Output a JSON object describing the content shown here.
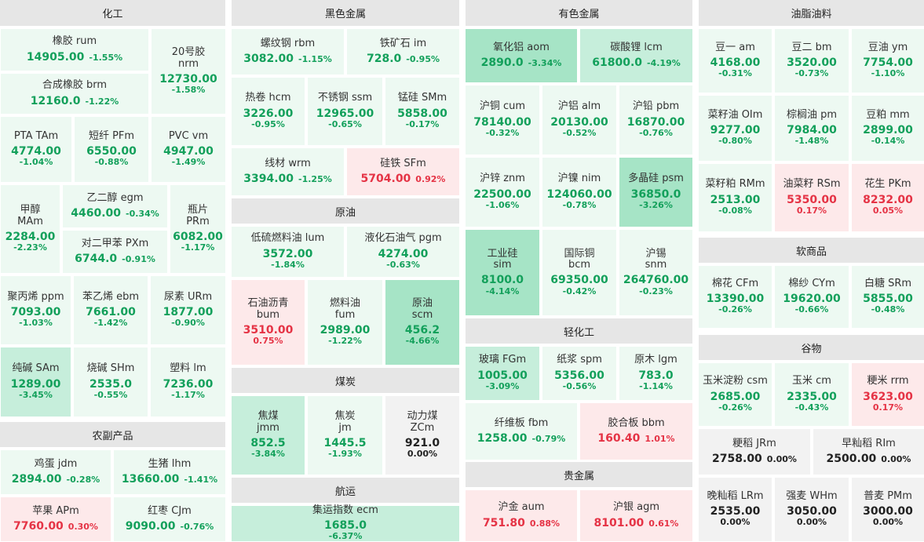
{
  "palette": {
    "light_green": "#edf9f2",
    "mid_green": "#c6eedb",
    "dark_green": "#a6e4c6",
    "light_red": "#fde9ea",
    "gray": "#f2f2f2",
    "up": "#e53345",
    "down": "#13a05b"
  },
  "sections": [
    {
      "id": "huagong",
      "title": "化工"
    },
    {
      "id": "nongfu",
      "title": "农副产品"
    },
    {
      "id": "heise",
      "title": "黑色金属"
    },
    {
      "id": "yuanyou",
      "title": "原油"
    },
    {
      "id": "meitan",
      "title": "煤炭"
    },
    {
      "id": "hangyun",
      "title": "航运"
    },
    {
      "id": "youse",
      "title": "有色金属"
    },
    {
      "id": "qinghua",
      "title": "轻化工"
    },
    {
      "id": "gui",
      "title": "贵金属"
    },
    {
      "id": "youzhi",
      "title": "油脂油料"
    },
    {
      "id": "ruan",
      "title": "软商品"
    },
    {
      "id": "guwu",
      "title": "谷物"
    }
  ],
  "cells": [
    {
      "name": "橡胶  rum",
      "price": "14905.00",
      "pct": "-1.55%",
      "dir": "down",
      "layout": "row"
    },
    {
      "name": "20号胶\nnrm",
      "price": "12730.00",
      "pct": "-1.58%",
      "dir": "down",
      "layout": "col"
    },
    {
      "name": "合成橡胶  brm",
      "price": "12160.0",
      "pct": "-1.22%",
      "dir": "down",
      "layout": "row"
    },
    {
      "name": "PTA  TAm",
      "price": "4774.00",
      "pct": "-1.04%",
      "dir": "down",
      "layout": "col"
    },
    {
      "name": "短纤  PFm",
      "price": "6550.00",
      "pct": "-0.88%",
      "dir": "down",
      "layout": "col"
    },
    {
      "name": "PVC  vm",
      "price": "4947.00",
      "pct": "-1.49%",
      "dir": "down",
      "layout": "col"
    },
    {
      "name": "甲醇\nMAm",
      "price": "2284.00",
      "pct": "-2.23%",
      "dir": "down",
      "layout": "col"
    },
    {
      "name": "乙二醇  egm",
      "price": "4460.00",
      "pct": "-0.34%",
      "dir": "down",
      "layout": "row"
    },
    {
      "name": "瓶片\nPRm",
      "price": "6082.00",
      "pct": "-1.17%",
      "dir": "down",
      "layout": "col"
    },
    {
      "name": "对二甲苯  PXm",
      "price": "6744.0",
      "pct": "-0.91%",
      "dir": "down",
      "layout": "row"
    },
    {
      "name": "聚丙烯  ppm",
      "price": "7093.00",
      "pct": "-1.03%",
      "dir": "down",
      "layout": "col"
    },
    {
      "name": "苯乙烯  ebm",
      "price": "7661.00",
      "pct": "-1.42%",
      "dir": "down",
      "layout": "col"
    },
    {
      "name": "尿素  URm",
      "price": "1877.00",
      "pct": "-0.90%",
      "dir": "down",
      "layout": "col"
    },
    {
      "name": "纯碱  SAm",
      "price": "1289.00",
      "pct": "-3.45%",
      "dir": "down",
      "layout": "col"
    },
    {
      "name": "烧碱  SHm",
      "price": "2535.0",
      "pct": "-0.55%",
      "dir": "down",
      "layout": "col"
    },
    {
      "name": "塑料  lm",
      "price": "7236.00",
      "pct": "-1.17%",
      "dir": "down",
      "layout": "col"
    },
    {
      "name": "鸡蛋  jdm",
      "price": "2894.00",
      "pct": "-0.28%",
      "dir": "down",
      "layout": "row"
    },
    {
      "name": "生猪  lhm",
      "price": "13660.00",
      "pct": "-1.41%",
      "dir": "down",
      "layout": "row"
    },
    {
      "name": "苹果  APm",
      "price": "7760.00",
      "pct": "0.30%",
      "dir": "up",
      "layout": "row"
    },
    {
      "name": "红枣  CJm",
      "price": "9090.00",
      "pct": "-0.76%",
      "dir": "down",
      "layout": "row"
    },
    {
      "name": "螺纹钢  rbm",
      "price": "3082.00",
      "pct": "-1.15%",
      "dir": "down",
      "layout": "row"
    },
    {
      "name": "铁矿石  im",
      "price": "728.0",
      "pct": "-0.95%",
      "dir": "down",
      "layout": "row"
    },
    {
      "name": "热卷  hcm",
      "price": "3226.00",
      "pct": "-0.95%",
      "dir": "down",
      "layout": "col"
    },
    {
      "name": "不锈钢  ssm",
      "price": "12965.00",
      "pct": "-0.65%",
      "dir": "down",
      "layout": "col"
    },
    {
      "name": "锰硅  SMm",
      "price": "5858.00",
      "pct": "-0.17%",
      "dir": "down",
      "layout": "col"
    },
    {
      "name": "线材  wrm",
      "price": "3394.00",
      "pct": "-1.25%",
      "dir": "down",
      "layout": "row"
    },
    {
      "name": "硅铁  SFm",
      "price": "5704.00",
      "pct": "0.92%",
      "dir": "up",
      "layout": "row"
    },
    {
      "name": "低硫燃料油  lum",
      "price": "3572.00",
      "pct": "-1.84%",
      "dir": "down",
      "layout": "col"
    },
    {
      "name": "液化石油气  pgm",
      "price": "4274.00",
      "pct": "-0.63%",
      "dir": "down",
      "layout": "col"
    },
    {
      "name": "石油沥青\nbum",
      "price": "3510.00",
      "pct": "0.75%",
      "dir": "up",
      "layout": "col"
    },
    {
      "name": "燃料油\nfum",
      "price": "2989.00",
      "pct": "-1.22%",
      "dir": "down",
      "layout": "col"
    },
    {
      "name": "原油\nscm",
      "price": "456.2",
      "pct": "-4.66%",
      "dir": "down",
      "layout": "col"
    },
    {
      "name": "焦煤\njmm",
      "price": "852.5",
      "pct": "-3.84%",
      "dir": "down",
      "layout": "col"
    },
    {
      "name": "焦炭\njm",
      "price": "1445.5",
      "pct": "-1.93%",
      "dir": "down",
      "layout": "col"
    },
    {
      "name": "动力煤\nZCm",
      "price": "921.0",
      "pct": "0.00%",
      "dir": "flat",
      "layout": "col"
    },
    {
      "name": "集运指数  ecm",
      "price": "1685.0",
      "pct": "-6.37%",
      "dir": "down",
      "layout": "col"
    },
    {
      "name": "氧化铝  aom",
      "price": "2890.0",
      "pct": "-3.34%",
      "dir": "down",
      "layout": "row"
    },
    {
      "name": "碳酸锂  lcm",
      "price": "61800.0",
      "pct": "-4.19%",
      "dir": "down",
      "layout": "row"
    },
    {
      "name": "沪铜  cum",
      "price": "78140.00",
      "pct": "-0.32%",
      "dir": "down",
      "layout": "col"
    },
    {
      "name": "沪铝  alm",
      "price": "20130.00",
      "pct": "-0.52%",
      "dir": "down",
      "layout": "col"
    },
    {
      "name": "沪铅  pbm",
      "price": "16870.00",
      "pct": "-0.76%",
      "dir": "down",
      "layout": "col"
    },
    {
      "name": "沪锌  znm",
      "price": "22500.00",
      "pct": "-1.06%",
      "dir": "down",
      "layout": "col"
    },
    {
      "name": "沪镍  nim",
      "price": "124060.00",
      "pct": "-0.78%",
      "dir": "down",
      "layout": "col"
    },
    {
      "name": "多晶硅  psm",
      "price": "36850.0",
      "pct": "-3.26%",
      "dir": "down",
      "layout": "col"
    },
    {
      "name": "工业硅\nsim",
      "price": "8100.0",
      "pct": "-4.14%",
      "dir": "down",
      "layout": "col"
    },
    {
      "name": "国际铜\nbcm",
      "price": "69350.00",
      "pct": "-0.42%",
      "dir": "down",
      "layout": "col"
    },
    {
      "name": "沪锡\nsnm",
      "price": "264760.00",
      "pct": "-0.23%",
      "dir": "down",
      "layout": "col"
    },
    {
      "name": "玻璃  FGm",
      "price": "1005.00",
      "pct": "-3.09%",
      "dir": "down",
      "layout": "col"
    },
    {
      "name": "纸浆  spm",
      "price": "5356.00",
      "pct": "-0.56%",
      "dir": "down",
      "layout": "col"
    },
    {
      "name": "原木  lgm",
      "price": "783.0",
      "pct": "-1.14%",
      "dir": "down",
      "layout": "col"
    },
    {
      "name": "纤维板  fbm",
      "price": "1258.00",
      "pct": "-0.79%",
      "dir": "down",
      "layout": "row"
    },
    {
      "name": "胶合板  bbm",
      "price": "160.40",
      "pct": "1.01%",
      "dir": "up",
      "layout": "row"
    },
    {
      "name": "沪金  aum",
      "price": "751.80",
      "pct": "0.88%",
      "dir": "up",
      "layout": "row"
    },
    {
      "name": "沪银  agm",
      "price": "8101.00",
      "pct": "0.61%",
      "dir": "up",
      "layout": "row"
    },
    {
      "name": "豆一  am",
      "price": "4168.00",
      "pct": "-0.31%",
      "dir": "down",
      "layout": "col"
    },
    {
      "name": "豆二  bm",
      "price": "3520.00",
      "pct": "-0.73%",
      "dir": "down",
      "layout": "col"
    },
    {
      "name": "豆油  ym",
      "price": "7754.00",
      "pct": "-1.10%",
      "dir": "down",
      "layout": "col"
    },
    {
      "name": "菜籽油  OIm",
      "price": "9277.00",
      "pct": "-0.80%",
      "dir": "down",
      "layout": "col"
    },
    {
      "name": "棕榈油  pm",
      "price": "7984.00",
      "pct": "-1.48%",
      "dir": "down",
      "layout": "col"
    },
    {
      "name": "豆粕  mm",
      "price": "2899.00",
      "pct": "-0.14%",
      "dir": "down",
      "layout": "col"
    },
    {
      "name": "菜籽粕  RMm",
      "price": "2513.00",
      "pct": "-0.08%",
      "dir": "down",
      "layout": "col"
    },
    {
      "name": "油菜籽  RSm",
      "price": "5350.00",
      "pct": "0.17%",
      "dir": "up",
      "layout": "col"
    },
    {
      "name": "花生  PKm",
      "price": "8232.00",
      "pct": "0.05%",
      "dir": "up",
      "layout": "col"
    },
    {
      "name": "棉花  CFm",
      "price": "13390.00",
      "pct": "-0.26%",
      "dir": "down",
      "layout": "col"
    },
    {
      "name": "棉纱  CYm",
      "price": "19620.00",
      "pct": "-0.66%",
      "dir": "down",
      "layout": "col"
    },
    {
      "name": "白糖  SRm",
      "price": "5855.00",
      "pct": "-0.48%",
      "dir": "down",
      "layout": "col"
    },
    {
      "name": "玉米淀粉  csm",
      "price": "2685.00",
      "pct": "-0.26%",
      "dir": "down",
      "layout": "col"
    },
    {
      "name": "玉米  cm",
      "price": "2335.00",
      "pct": "-0.43%",
      "dir": "down",
      "layout": "col"
    },
    {
      "name": "粳米  rrm",
      "price": "3623.00",
      "pct": "0.17%",
      "dir": "up",
      "layout": "col"
    },
    {
      "name": "粳稻  JRm",
      "price": "2758.00",
      "pct": "0.00%",
      "dir": "flat",
      "layout": "row"
    },
    {
      "name": "早籼稻  RIm",
      "price": "2500.00",
      "pct": "0.00%",
      "dir": "flat",
      "layout": "row"
    },
    {
      "name": "晚籼稻  LRm",
      "price": "2535.00",
      "pct": "0.00%",
      "dir": "flat",
      "layout": "col"
    },
    {
      "name": "强麦  WHm",
      "price": "3050.00",
      "pct": "0.00%",
      "dir": "flat",
      "layout": "col"
    },
    {
      "name": "普麦  PMm",
      "price": "3000.00",
      "pct": "0.00%",
      "dir": "flat",
      "layout": "col"
    }
  ]
}
